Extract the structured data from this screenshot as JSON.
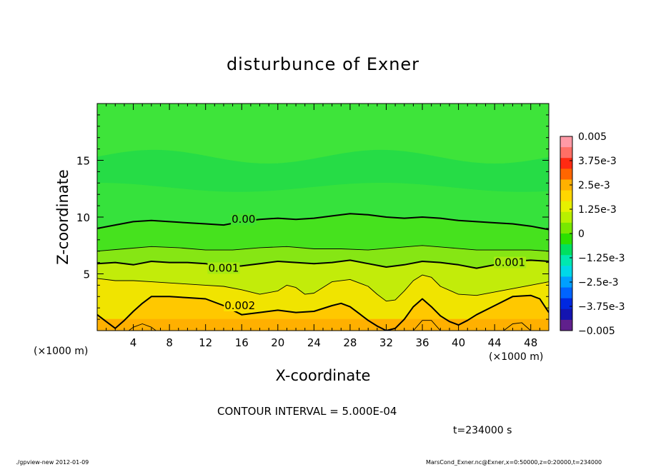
{
  "chart_data": {
    "type": "heatmap",
    "title": "disturbunce of Exner",
    "xlabel": "X-coordinate",
    "ylabel": "Z-coordinate",
    "x_unit_label": "(×1000 m)",
    "xlim": [
      0,
      50
    ],
    "ylim": [
      0,
      20
    ],
    "x_ticks": [
      4,
      8,
      12,
      16,
      20,
      24,
      28,
      32,
      36,
      40,
      44,
      48
    ],
    "y_ticks": [
      5,
      10,
      15
    ],
    "contour_interval_text": "CONTOUR INTERVAL = 5.000E-04",
    "time_text": "t=234000 s",
    "colorbar": {
      "range": [
        -0.005,
        0.005
      ],
      "tick_values": [
        0.005,
        0.00375,
        0.0025,
        0.00125,
        0,
        -0.00125,
        -0.0025,
        -0.00375,
        -0.005
      ],
      "tick_labels": [
        "0.005",
        "3.75e-3",
        "2.5e-3",
        "1.25e-3",
        "0",
        "−1.25e-3",
        "−2.5e-3",
        "−3.75e-3",
        "−0.005"
      ],
      "colors": [
        "#ff9aa6",
        "#ff6f66",
        "#ff2a12",
        "#ff6600",
        "#ffb000",
        "#ffd600",
        "#e6f000",
        "#b8f000",
        "#78e800",
        "#2ce000",
        "#00e060",
        "#00e8b0",
        "#00d8e8",
        "#00a0ff",
        "#0064ff",
        "#0028e0",
        "#1414b0",
        "#60208c"
      ]
    },
    "contour_labels": [
      {
        "text": "0.00",
        "x": 16.2,
        "y": 9.8,
        "value": 0.0
      },
      {
        "text": "0.001",
        "x": 14.0,
        "y": 5.5,
        "value": 0.001
      },
      {
        "text": "0.001",
        "x": 45.7,
        "y": 6.0,
        "value": 0.001
      },
      {
        "text": "0.002",
        "x": 15.8,
        "y": 2.2,
        "value": 0.002
      }
    ],
    "contours": [
      {
        "level": 0.0,
        "bold": true,
        "x": [
          0,
          2,
          4,
          6,
          8,
          10,
          12,
          14,
          16,
          18,
          20,
          22,
          24,
          26,
          28,
          30,
          32,
          34,
          36,
          38,
          40,
          42,
          44,
          46,
          48,
          50
        ],
        "y": [
          9.0,
          9.3,
          9.6,
          9.7,
          9.6,
          9.5,
          9.4,
          9.3,
          9.6,
          9.8,
          9.9,
          9.8,
          9.9,
          10.1,
          10.3,
          10.2,
          10.0,
          9.9,
          10.0,
          9.9,
          9.7,
          9.6,
          9.5,
          9.4,
          9.2,
          8.9
        ]
      },
      {
        "level": 0.0005,
        "bold": false,
        "x": [
          0,
          3,
          6,
          9,
          12,
          15,
          18,
          21,
          24,
          27,
          30,
          33,
          36,
          39,
          42,
          45,
          48,
          50
        ],
        "y": [
          7.0,
          7.2,
          7.4,
          7.3,
          7.1,
          7.1,
          7.3,
          7.4,
          7.2,
          7.2,
          7.1,
          7.3,
          7.5,
          7.3,
          7.1,
          7.1,
          7.1,
          7.0
        ]
      },
      {
        "level": 0.001,
        "bold": true,
        "x": [
          0,
          2,
          4,
          6,
          8,
          10,
          12,
          14,
          16,
          18,
          20,
          22,
          24,
          26,
          28,
          30,
          32,
          34,
          36,
          38,
          40,
          42,
          44,
          46,
          48,
          50
        ],
        "y": [
          5.9,
          6.0,
          5.8,
          6.1,
          6.0,
          6.0,
          5.9,
          5.6,
          5.7,
          5.9,
          6.1,
          6.0,
          5.9,
          6.0,
          6.2,
          5.9,
          5.6,
          5.8,
          6.1,
          6.0,
          5.8,
          5.5,
          5.8,
          6.1,
          6.2,
          6.1
        ]
      },
      {
        "level": 0.0015,
        "bold": false,
        "x": [
          0,
          2,
          4,
          6,
          8,
          10,
          12,
          14,
          16,
          18,
          20,
          21,
          22,
          23,
          24,
          26,
          28,
          30,
          31,
          32,
          33,
          34,
          35,
          36,
          37,
          38,
          40,
          42,
          44,
          46,
          48,
          50
        ],
        "y": [
          4.6,
          4.4,
          4.4,
          4.3,
          4.2,
          4.1,
          4.0,
          3.9,
          3.6,
          3.2,
          3.5,
          4.0,
          3.8,
          3.2,
          3.3,
          4.3,
          4.5,
          3.9,
          3.2,
          2.6,
          2.7,
          3.5,
          4.4,
          4.9,
          4.7,
          3.9,
          3.2,
          3.1,
          3.4,
          3.7,
          4.0,
          4.3
        ]
      },
      {
        "level": 0.002,
        "bold": true,
        "x": [
          0,
          1,
          2,
          3,
          4,
          5,
          6,
          8,
          10,
          12,
          14,
          16,
          18,
          20,
          22,
          24,
          26,
          27,
          28,
          29,
          30,
          31,
          32,
          33,
          34,
          35,
          36,
          37,
          38,
          39,
          40,
          41,
          42,
          44,
          46,
          48,
          49,
          50
        ],
        "y": [
          1.4,
          0.8,
          0.2,
          0.9,
          1.7,
          2.4,
          3.0,
          3.0,
          2.9,
          2.8,
          2.2,
          1.4,
          1.6,
          1.8,
          1.6,
          1.7,
          2.2,
          2.4,
          2.1,
          1.5,
          0.9,
          0.4,
          0.0,
          0.2,
          1.0,
          2.1,
          2.8,
          2.1,
          1.3,
          0.8,
          0.5,
          0.9,
          1.4,
          2.2,
          3.0,
          3.1,
          2.8,
          1.6
        ]
      },
      {
        "level": 0.0025,
        "bold": false,
        "x": [
          3.5,
          4,
          5,
          6,
          6.5
        ],
        "y": [
          0,
          0.3,
          0.6,
          0.3,
          0
        ]
      },
      {
        "level": 0.0025,
        "bold": false,
        "x": [
          35,
          36,
          37,
          38
        ],
        "y": [
          0,
          0.9,
          0.9,
          0
        ]
      },
      {
        "level": 0.0025,
        "bold": false,
        "x": [
          45,
          46,
          47,
          48
        ],
        "y": [
          0,
          0.6,
          0.7,
          0
        ]
      }
    ]
  },
  "footer": {
    "left": "./gpview-new   2012-01-09",
    "right": "MarsCond_Exner.nc@Exner,x=0:50000,z=0:20000,t=234000"
  }
}
